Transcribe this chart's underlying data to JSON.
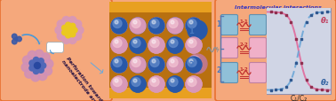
{
  "fig_width": 3.78,
  "fig_height": 1.15,
  "dpi": 100,
  "bg_color": "#F5A87C",
  "border_color": "#E87030",
  "left_panel_bg": "#F5A87C",
  "mid_bg_dark": "#C07818",
  "mid_bg_gold": "#E8A828",
  "right_panel_bg": "#F5A87C",
  "graph_bg": "#D8DCE8",
  "graph_border": "#9898B0",
  "title_text": "Intermolecular interactions",
  "title_color": "#3838C0",
  "xlabel_text": "C₁/C₂",
  "theta1_text": "θ₁",
  "theta2_text": "θ₂",
  "curve_pink": "#E070A0",
  "curve_blue": "#70A8D8",
  "blue_cluster_outer": "#D090B8",
  "blue_cluster_mid": "#5068B8",
  "blue_cluster_core": "#2848A0",
  "gold_cluster_outer": "#C898B0",
  "gold_cluster_mid": "#E8C828",
  "pink_electrode": "#D898B8",
  "pink_electrode_inner": "#F0C8D8",
  "blue_electrode": "#3060A8",
  "blue_electrode_inner": "#6088C8",
  "wavy_color": "#A0A0A0",
  "bracket_color": "#5878B0",
  "label_color": "#C03030",
  "num_label_color": "#4878C0",
  "box_blue": "#90C0D8",
  "box_pink": "#F0B0C8",
  "box_pink2": "#F0B0C8"
}
